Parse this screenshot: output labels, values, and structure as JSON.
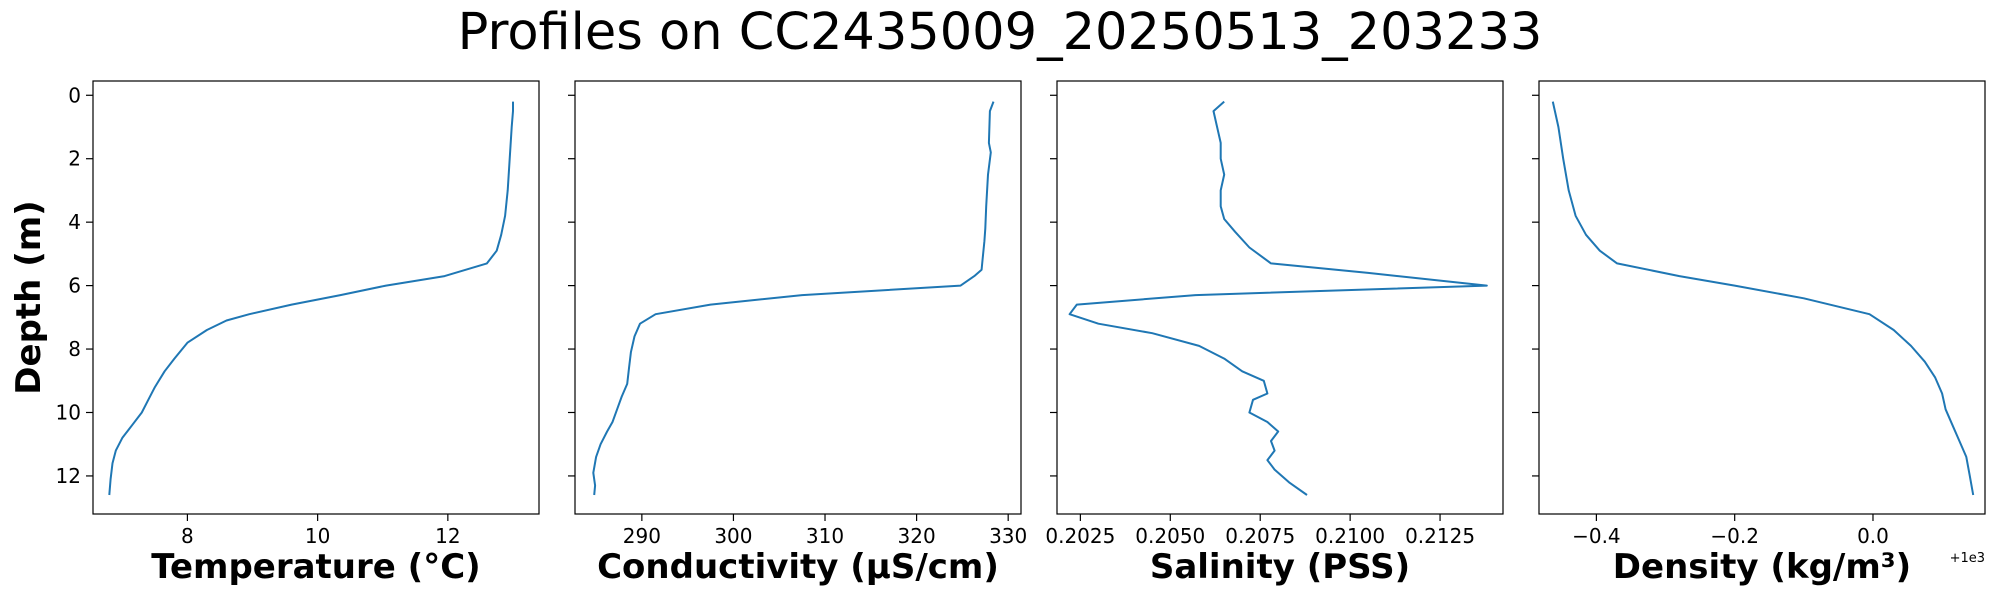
{
  "title": "Profiles on CC2435009_20250513_203233",
  "line_color": "#1f77b4",
  "chart_data": [
    {
      "type": "line",
      "xlabel": "Temperature (°C)",
      "ylabel": "Depth (m)",
      "xlim": [
        6.55,
        13.4
      ],
      "ylim": [
        13.2,
        -0.45
      ],
      "xticks": [
        8,
        10,
        12
      ],
      "xtick_labels": [
        "8",
        "10",
        "12"
      ],
      "yticks": [
        0,
        2,
        4,
        6,
        8,
        10,
        12
      ],
      "ytick_labels": [
        "0",
        "2",
        "4",
        "6",
        "8",
        "10",
        "12"
      ],
      "x_offset_label": "",
      "series": [
        {
          "x": [
            13.0,
            13.0,
            12.98,
            12.95,
            12.92,
            12.88,
            12.82,
            12.75,
            12.6,
            11.95,
            11.05,
            10.35,
            9.6,
            8.95,
            8.6,
            8.3,
            8.0,
            7.8,
            7.65,
            7.5,
            7.4,
            7.3,
            7.15,
            7.0,
            6.9,
            6.85,
            6.82,
            6.8
          ],
          "y": [
            0.2,
            0.5,
            1.0,
            2.0,
            3.0,
            3.8,
            4.4,
            4.9,
            5.3,
            5.7,
            6.0,
            6.3,
            6.6,
            6.9,
            7.1,
            7.4,
            7.8,
            8.3,
            8.7,
            9.2,
            9.6,
            10.0,
            10.4,
            10.8,
            11.2,
            11.6,
            12.1,
            12.6
          ]
        }
      ]
    },
    {
      "type": "line",
      "xlabel": "Conductivity (μS/cm)",
      "ylabel": "",
      "xlim": [
        282.7,
        331.4
      ],
      "ylim": [
        13.2,
        -0.45
      ],
      "xticks": [
        290,
        300,
        310,
        320,
        330
      ],
      "xtick_labels": [
        "290",
        "300",
        "310",
        "320",
        "330"
      ],
      "yticks": [
        0,
        2,
        4,
        6,
        8,
        10,
        12
      ],
      "ytick_labels": [
        "",
        "",
        "",
        "",
        "",
        "",
        ""
      ],
      "x_offset_label": "",
      "series": [
        {
          "x": [
            328.4,
            328.0,
            327.9,
            328.1,
            327.8,
            327.6,
            327.5,
            327.4,
            327.2,
            327.1,
            326.3,
            324.8,
            307.5,
            297.5,
            291.5,
            289.8,
            289.2,
            288.8,
            288.6,
            288.4,
            287.8,
            287.3,
            286.8,
            286.2,
            285.5,
            285.0,
            284.7,
            284.9,
            284.8
          ],
          "y": [
            0.2,
            0.5,
            1.5,
            1.8,
            2.5,
            3.5,
            4.2,
            4.6,
            5.2,
            5.5,
            5.7,
            6.0,
            6.3,
            6.6,
            6.9,
            7.2,
            7.6,
            8.1,
            8.6,
            9.1,
            9.5,
            9.9,
            10.3,
            10.6,
            11.0,
            11.4,
            11.9,
            12.3,
            12.6
          ]
        }
      ]
    },
    {
      "type": "line",
      "xlabel": "Salinity (PSS)",
      "ylabel": "",
      "xlim": [
        0.20185,
        0.21425
      ],
      "ylim": [
        13.2,
        -0.45
      ],
      "xticks": [
        0.2025,
        0.205,
        0.2075,
        0.21,
        0.2125
      ],
      "xtick_labels": [
        "0.2025",
        "0.2050",
        "0.2075",
        "0.2100",
        "0.2125"
      ],
      "yticks": [
        0,
        2,
        4,
        6,
        8,
        10,
        12
      ],
      "ytick_labels": [
        "",
        "",
        "",
        "",
        "",
        "",
        ""
      ],
      "x_offset_label": "",
      "series": [
        {
          "x": [
            0.2065,
            0.2062,
            0.2063,
            0.2064,
            0.2064,
            0.2065,
            0.2064,
            0.2064,
            0.2065,
            0.2068,
            0.2072,
            0.2078,
            0.2105,
            0.2138,
            0.2057,
            0.2024,
            0.2022,
            0.203,
            0.2045,
            0.2058,
            0.2065,
            0.207,
            0.2076,
            0.2077,
            0.2073,
            0.2072,
            0.2077,
            0.208,
            0.2078,
            0.2079,
            0.2077,
            0.2079,
            0.2083,
            0.2088
          ],
          "y": [
            0.2,
            0.5,
            1.0,
            1.5,
            2.0,
            2.5,
            3.0,
            3.5,
            3.9,
            4.3,
            4.8,
            5.3,
            5.6,
            6.0,
            6.3,
            6.6,
            6.9,
            7.2,
            7.5,
            7.9,
            8.3,
            8.7,
            9.0,
            9.4,
            9.6,
            10.0,
            10.3,
            10.6,
            10.9,
            11.2,
            11.5,
            11.8,
            12.2,
            12.6
          ]
        }
      ]
    },
    {
      "type": "line",
      "xlabel": "Density (kg/m³)",
      "ylabel": "",
      "xlim": [
        -0.483,
        0.162
      ],
      "ylim": [
        13.2,
        -0.45
      ],
      "xticks": [
        -0.4,
        -0.2,
        0.0
      ],
      "xtick_labels": [
        "−0.4",
        "−0.2",
        "0.0"
      ],
      "yticks": [
        0,
        2,
        4,
        6,
        8,
        10,
        12
      ],
      "ytick_labels": [
        "",
        "",
        "",
        "",
        "",
        "",
        ""
      ],
      "x_offset_label": "+1e3",
      "series": [
        {
          "x": [
            -0.463,
            -0.46,
            -0.455,
            -0.448,
            -0.44,
            -0.43,
            -0.415,
            -0.395,
            -0.37,
            -0.28,
            -0.2,
            -0.1,
            -0.005,
            0.03,
            0.055,
            0.075,
            0.09,
            0.1,
            0.105,
            0.115,
            0.125,
            0.135,
            0.14,
            0.145
          ],
          "y": [
            0.2,
            0.5,
            1.0,
            2.0,
            3.0,
            3.8,
            4.4,
            4.9,
            5.3,
            5.7,
            6.0,
            6.4,
            6.9,
            7.4,
            7.9,
            8.4,
            8.9,
            9.4,
            9.9,
            10.4,
            10.9,
            11.4,
            12.0,
            12.6
          ]
        }
      ]
    }
  ]
}
